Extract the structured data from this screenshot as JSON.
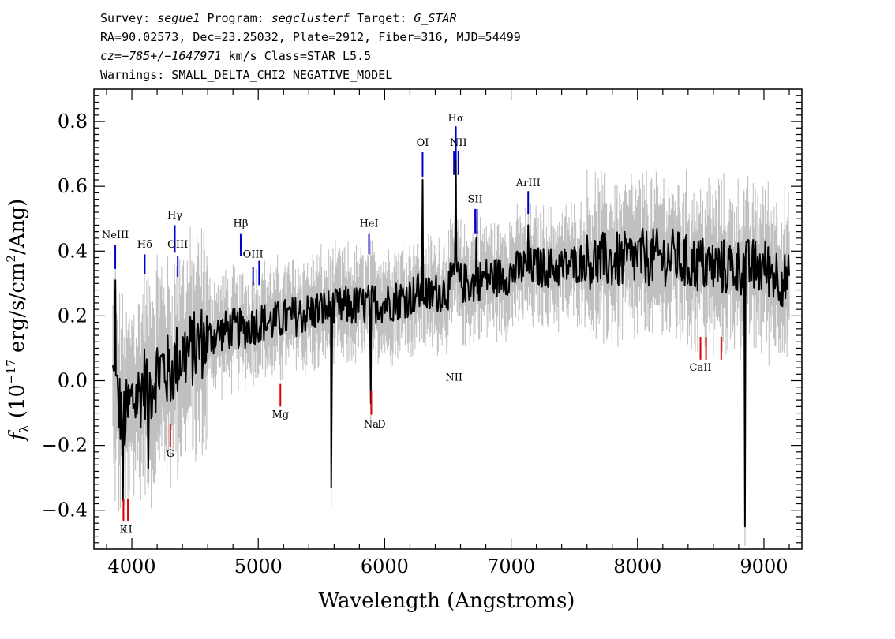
{
  "header": {
    "line1": {
      "survey_label": "Survey: ",
      "survey": "segue1",
      "program_label": " Program: ",
      "program": "segclusterf",
      "target_label": " Target: ",
      "target": "G_STAR"
    },
    "line2": "RA=90.02573, Dec=23.25032, Plate=2912, Fiber=316, MJD=54499",
    "line3": {
      "cz": "cz=−785+/−1647971",
      "rest": " km/s Class=STAR L5.5"
    },
    "line4": "Warnings: SMALL_DELTA_CHI2 NEGATIVE_MODEL"
  },
  "colors": {
    "flux": "#000000",
    "error_band": "#c0c0c0",
    "emission": "#0000cc",
    "absorption": "#dd0000",
    "axis": "#000000"
  },
  "chart_data": {
    "type": "line",
    "xlabel": "Wavelength (Angstroms)",
    "ylabel": "f_λ (10^-17 erg/s/cm²/Ang)",
    "ylabel_parts": {
      "f": "f",
      "lambda": "λ",
      "pre": " (10",
      "exp": "−17",
      "mid": " erg/s/cm",
      "sq": "2",
      "post": "/Ang)"
    },
    "xlim": [
      3700,
      9300
    ],
    "ylim": [
      -0.52,
      0.9
    ],
    "x_ticks": [
      4000,
      5000,
      6000,
      7000,
      8000,
      9000
    ],
    "x_tick_labels": [
      "4000",
      "5000",
      "6000",
      "7000",
      "8000",
      "9000"
    ],
    "y_ticks": [
      -0.4,
      -0.2,
      0.0,
      0.2,
      0.4,
      0.6,
      0.8
    ],
    "y_tick_labels": [
      "−0.4",
      "−0.2",
      "0.0",
      "0.2",
      "0.4",
      "0.6",
      "0.8"
    ],
    "series": [
      {
        "x": [
          3850,
          3900,
          3950,
          4000,
          4050,
          4100,
          4150,
          4200,
          4250,
          4300,
          4350,
          4400,
          4450,
          4500,
          4550,
          4600,
          4700,
          4800,
          4900,
          5000,
          5100,
          5200,
          5300,
          5400,
          5500,
          5600,
          5700,
          5800,
          5900,
          6000,
          6100,
          6200,
          6250,
          6300,
          6350,
          6400,
          6500,
          6560,
          6600,
          6700,
          6800,
          6900,
          7000,
          7100,
          7200,
          7300,
          7400,
          7500,
          7600,
          7700,
          7800,
          7900,
          8000,
          8100,
          8200,
          8300,
          8400,
          8500,
          8600,
          8700,
          8800,
          8900,
          9000,
          9100,
          9200
        ],
        "y": [
          0.01,
          -0.08,
          -0.12,
          -0.06,
          -0.05,
          0.0,
          -0.02,
          0.03,
          0.04,
          0.02,
          0.06,
          0.08,
          0.09,
          0.1,
          0.12,
          0.13,
          0.15,
          0.16,
          0.16,
          0.18,
          0.18,
          0.19,
          0.2,
          0.21,
          0.22,
          0.22,
          0.23,
          0.23,
          0.24,
          0.24,
          0.25,
          0.26,
          0.27,
          0.28,
          0.26,
          0.27,
          0.28,
          0.34,
          0.3,
          0.3,
          0.32,
          0.32,
          0.33,
          0.35,
          0.35,
          0.35,
          0.35,
          0.36,
          0.37,
          0.37,
          0.37,
          0.37,
          0.38,
          0.38,
          0.38,
          0.38,
          0.36,
          0.36,
          0.35,
          0.35,
          0.35,
          0.35,
          0.35,
          0.33,
          0.3
        ]
      }
    ],
    "spikes": [
      {
        "x": 6300,
        "y": 0.62
      },
      {
        "x": 6563,
        "y": 0.68
      },
      {
        "x": 7135,
        "y": 0.48
      },
      {
        "x": 6725,
        "y": 0.44
      },
      {
        "x": 3870,
        "y": 0.31
      },
      {
        "x": 3930,
        "y": -0.37
      },
      {
        "x": 4130,
        "y": -0.27
      },
      {
        "x": 5890,
        "y": -0.07
      },
      {
        "x": 5577,
        "y": -0.33
      },
      {
        "x": 8850,
        "y": -0.45
      }
    ],
    "emission_lines": [
      {
        "label": "NeIII",
        "x": 3869,
        "y1": 0.345,
        "y2": 0.42,
        "label_y": 0.44
      },
      {
        "label": "Hδ",
        "x": 4102,
        "y1": 0.33,
        "y2": 0.39,
        "label_y": 0.41
      },
      {
        "label": "Hγ",
        "x": 4340,
        "y1": 0.395,
        "y2": 0.48,
        "label_y": 0.5
      },
      {
        "label": "OIII",
        "x": 4363,
        "y1": 0.32,
        "y2": 0.385,
        "label_y": 0.41
      },
      {
        "label": "Hβ",
        "x": 4861,
        "y1": 0.385,
        "y2": 0.455,
        "label_y": 0.475
      },
      {
        "label": "OIII",
        "x": 4959,
        "y1": 0.295,
        "y2": 0.35,
        "label_y": 0.38
      },
      {
        "label": "",
        "x": 5007,
        "y1": 0.295,
        "y2": 0.37,
        "label_y": 0
      },
      {
        "label": "HeI",
        "x": 5876,
        "y1": 0.39,
        "y2": 0.455,
        "label_y": 0.475
      },
      {
        "label": "OI",
        "x": 6300,
        "y1": 0.63,
        "y2": 0.705,
        "label_y": 0.725
      },
      {
        "label": "NII",
        "x": 6548,
        "y1": 0.635,
        "y2": 0.71,
        "label_y": 0
      },
      {
        "label": "Hα",
        "x": 6563,
        "y1": 0.68,
        "y2": 0.785,
        "label_y": 0.8
      },
      {
        "label": "NII",
        "x": 6583,
        "y1": 0.635,
        "y2": 0.71,
        "label_y": 0.725
      },
      {
        "label": "SII",
        "x": 6716,
        "y1": 0.455,
        "y2": 0.53,
        "label_y": 0.55
      },
      {
        "label": "",
        "x": 6731,
        "y1": 0.455,
        "y2": 0.53,
        "label_y": 0
      },
      {
        "label": "ArIII",
        "x": 7135,
        "y1": 0.515,
        "y2": 0.585,
        "label_y": 0.6
      }
    ],
    "absorption_lines": [
      {
        "label": "K",
        "x": 3934,
        "y1": -0.365,
        "y2": -0.435,
        "label_y": -0.47
      },
      {
        "label": "H",
        "x": 3969,
        "y1": -0.365,
        "y2": -0.435,
        "label_y": -0.47
      },
      {
        "label": "G",
        "x": 4304,
        "y1": -0.135,
        "y2": -0.205,
        "label_y": -0.235
      },
      {
        "label": "Mg",
        "x": 5175,
        "y1": -0.01,
        "y2": -0.08,
        "label_y": -0.115
      },
      {
        "label": "Na",
        "x": 5894,
        "y1": -0.03,
        "y2": -0.105,
        "label_y": -0.145
      },
      {
        "label": "CaII",
        "x": 8498,
        "y1": 0.135,
        "y2": 0.065,
        "label_y": 0.03
      },
      {
        "label": "",
        "x": 8542,
        "y1": 0.135,
        "y2": 0.065,
        "label_y": 0
      },
      {
        "label": "",
        "x": 8662,
        "y1": 0.135,
        "y2": 0.065,
        "label_y": 0
      }
    ],
    "extra_labels": [
      {
        "text": "D",
        "x": 5975,
        "y": -0.145
      }
    ]
  }
}
